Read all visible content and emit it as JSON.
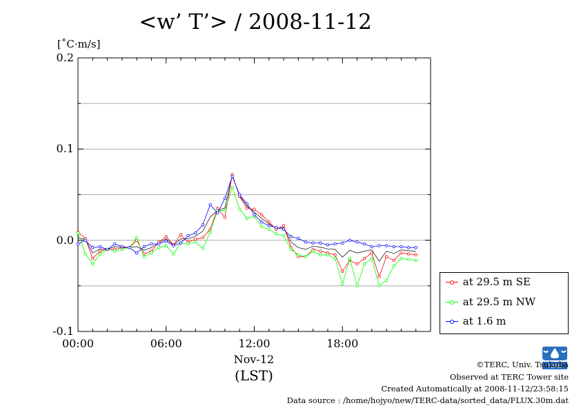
{
  "page": {
    "title": "<w’ T’> / 2008-11-12",
    "unit_label": "[˚C·m/s]",
    "date_label": "Nov-12",
    "tz_label": "(LST)",
    "footer": {
      "copyright": "©TERC, Univ. Tsukuba",
      "observed": "Observed at TERC Tower site",
      "created": "Created Automatically at 2008-11-12/23:58:15",
      "source": "Data source : /home/hojyo/new/TERC-data/sorted_data/FLUX.30m.dat"
    },
    "logo_text": "TERC"
  },
  "chart_data": {
    "type": "line",
    "title": "<w’ T’> / 2008-11-12",
    "ylabel": "[˚C·m/s]",
    "xlabel": "(LST)",
    "xlim": [
      0,
      24
    ],
    "ylim": [
      -0.1,
      0.2
    ],
    "grid": true,
    "legend_position": "bottom-right-outside",
    "y_ticks": [
      {
        "value": 0.2,
        "label": "0.2"
      },
      {
        "value": 0.1,
        "label": "0.1"
      },
      {
        "value": 0.0,
        "label": "0.0"
      },
      {
        "value": -0.1,
        "label": "-0.1"
      }
    ],
    "x_ticks": [
      {
        "value": 0,
        "label": "00:00"
      },
      {
        "value": 6,
        "label": "06:00"
      },
      {
        "value": 12,
        "label": "12:00"
      },
      {
        "value": 18,
        "label": "18:00"
      }
    ],
    "x": [
      0,
      0.5,
      1,
      1.5,
      2,
      2.5,
      3,
      3.5,
      4,
      4.5,
      5,
      5.5,
      6,
      6.5,
      7,
      7.5,
      8,
      8.5,
      9,
      9.5,
      10,
      10.5,
      11,
      11.5,
      12,
      12.5,
      13,
      13.5,
      14,
      14.5,
      15,
      15.5,
      16,
      16.5,
      17,
      17.5,
      18,
      18.5,
      19,
      19.5,
      20,
      20.5,
      21,
      21.5,
      22,
      22.5,
      23
    ],
    "series": [
      {
        "name": "at 29.5 m SE",
        "color": "#ff0000",
        "values": [
          0.009,
          0.002,
          -0.02,
          -0.012,
          -0.01,
          -0.01,
          -0.008,
          -0.008,
          0.0,
          -0.015,
          -0.012,
          -0.002,
          0.004,
          -0.005,
          0.006,
          -0.002,
          0.001,
          0.003,
          0.012,
          0.035,
          0.025,
          0.072,
          0.048,
          0.035,
          0.034,
          0.028,
          0.02,
          0.012,
          0.016,
          -0.008,
          -0.018,
          -0.018,
          -0.01,
          -0.012,
          -0.014,
          -0.016,
          -0.034,
          -0.022,
          -0.026,
          -0.02,
          -0.014,
          -0.04,
          -0.018,
          -0.022,
          -0.014,
          -0.015,
          -0.016
        ]
      },
      {
        "name": "at 29.5 m NW",
        "color": "#00ff00",
        "values": [
          0.008,
          -0.015,
          -0.026,
          -0.015,
          -0.01,
          -0.012,
          -0.01,
          -0.008,
          0.003,
          -0.018,
          -0.014,
          -0.008,
          -0.006,
          -0.015,
          -0.003,
          -0.004,
          -0.002,
          -0.009,
          0.009,
          0.032,
          0.033,
          0.058,
          0.034,
          0.024,
          0.026,
          0.015,
          0.012,
          0.007,
          0.005,
          -0.01,
          -0.016,
          -0.018,
          -0.012,
          -0.016,
          -0.016,
          -0.02,
          -0.048,
          -0.02,
          -0.05,
          -0.026,
          -0.02,
          -0.05,
          -0.044,
          -0.028,
          -0.02,
          -0.021,
          -0.022
        ]
      },
      {
        "name": "at 1.6 m",
        "color": "#0000ff",
        "values": [
          -0.004,
          0.0,
          -0.008,
          -0.007,
          -0.01,
          -0.004,
          -0.007,
          -0.008,
          -0.014,
          -0.007,
          -0.004,
          -0.004,
          -0.001,
          -0.006,
          -0.003,
          0.005,
          0.008,
          0.017,
          0.039,
          0.03,
          0.046,
          0.07,
          0.05,
          0.04,
          0.028,
          0.02,
          0.016,
          0.014,
          0.012,
          0.004,
          0.002,
          -0.002,
          -0.003,
          -0.003,
          -0.005,
          -0.004,
          -0.003,
          0.0,
          -0.002,
          -0.004,
          -0.007,
          -0.006,
          -0.006,
          -0.007,
          -0.007,
          -0.008,
          -0.008
        ]
      }
    ]
  }
}
